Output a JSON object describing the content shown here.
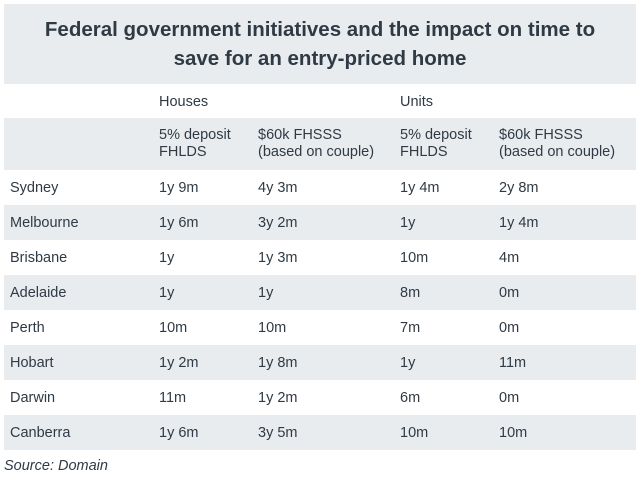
{
  "title": "Federal government initiatives and the impact on time to save for an entry-priced home",
  "source": "Source: Domain",
  "chart_data": {
    "type": "table",
    "title": "Federal government initiatives and the impact on time to save for an entry-priced home",
    "groups": [
      {
        "label": "Houses",
        "columns": [
          "5% deposit FHLDS",
          "$60k FHSSS (based on couple)"
        ]
      },
      {
        "label": "Units",
        "columns": [
          "5% deposit FHLDS",
          "$60k FHSSS (based on couple)"
        ]
      }
    ],
    "columns": [
      {
        "line1": "5% deposit",
        "line2": "FHLDS"
      },
      {
        "line1": "$60k FHSSS",
        "line2": "(based on couple)"
      },
      {
        "line1": "5% deposit",
        "line2": "FHLDS"
      },
      {
        "line1": "$60k FHSSS",
        "line2": "(based on couple)"
      }
    ],
    "rows": [
      {
        "city": "Sydney",
        "values": [
          "1y 9m",
          "4y 3m",
          "1y 4m",
          "2y 8m"
        ]
      },
      {
        "city": "Melbourne",
        "values": [
          "1y 6m",
          "3y 2m",
          "1y",
          "1y 4m"
        ]
      },
      {
        "city": "Brisbane",
        "values": [
          "1y",
          "1y 3m",
          "10m",
          "4m"
        ]
      },
      {
        "city": "Adelaide",
        "values": [
          "1y",
          "1y",
          "8m",
          "0m"
        ]
      },
      {
        "city": "Perth",
        "values": [
          "10m",
          "10m",
          "7m",
          "0m"
        ]
      },
      {
        "city": "Hobart",
        "values": [
          "1y 2m",
          "1y 8m",
          "1y",
          "11m"
        ]
      },
      {
        "city": "Darwin",
        "values": [
          "11m",
          "1y 2m",
          "6m",
          "0m"
        ]
      },
      {
        "city": "Canberra",
        "values": [
          "1y 6m",
          "3y 5m",
          "10m",
          "10m"
        ]
      }
    ]
  },
  "colors": {
    "shade": "#e9ecef",
    "text": "#2f3a44",
    "background": "#ffffff"
  }
}
